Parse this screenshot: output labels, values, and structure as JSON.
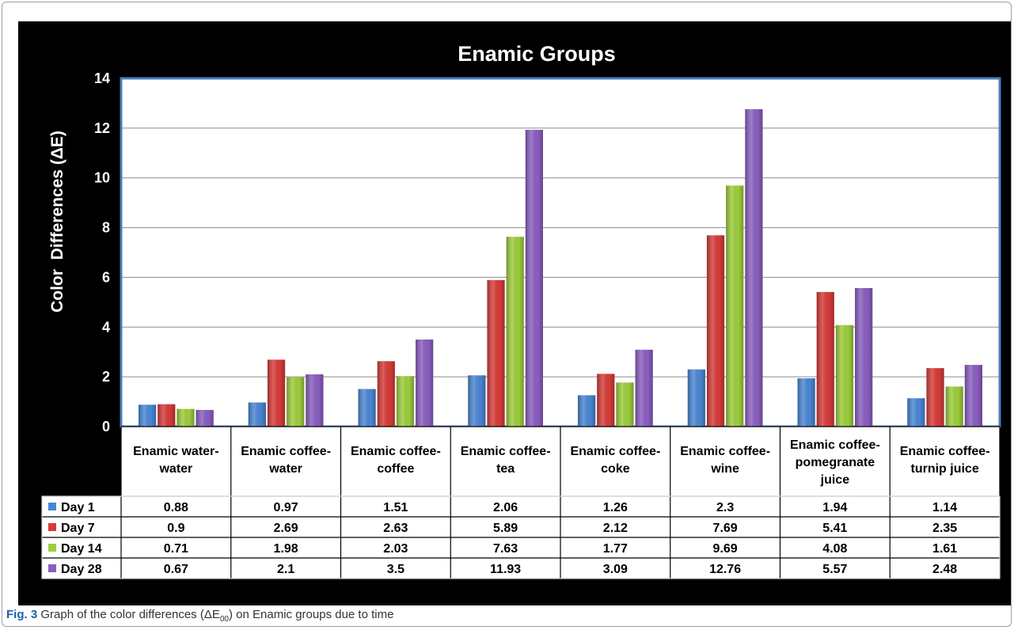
{
  "caption": {
    "label": "Fig. 3",
    "text_before": "Graph of the color differences (ΔE",
    "subscript": "00",
    "text_after": ") on Enamic groups due to time"
  },
  "colors": {
    "background": "#000000",
    "plot_area": "#ffffff",
    "plot_border": "#4a7ebb",
    "gridline": "#8c8c8c",
    "text": "#ffffff",
    "table_text": "#000000"
  },
  "chart_data": {
    "type": "bar",
    "title": "Enamic Groups",
    "xlabel": "",
    "ylabel": "Color  Differences (ΔE)",
    "ylim": [
      0,
      14
    ],
    "yticks": [
      "0",
      "2",
      "4",
      "6",
      "8",
      "10",
      "12",
      "14"
    ],
    "grid": true,
    "legend": "data-table",
    "categories": [
      [
        "Enamic water-",
        "water"
      ],
      [
        "Enamic coffee-",
        "water"
      ],
      [
        "Enamic coffee-",
        "coffee"
      ],
      [
        "Enamic coffee-",
        "tea"
      ],
      [
        "Enamic coffee-",
        "coke"
      ],
      [
        "Enamic coffee-",
        "wine"
      ],
      [
        "Enamic coffee-",
        "pomegranate",
        "juice"
      ],
      [
        "Enamic coffee-",
        "turnip juice"
      ]
    ],
    "series": [
      {
        "name": "Day 1",
        "color": "#4a86d4",
        "values": [
          0.88,
          0.97,
          1.51,
          2.06,
          1.26,
          2.3,
          1.94,
          1.14
        ],
        "labels": [
          "0.88",
          "0.97",
          "1.51",
          "2.06",
          "1.26",
          "2.3",
          "1.94",
          "1.14"
        ]
      },
      {
        "name": "Day 7",
        "color": "#d63b38",
        "values": [
          0.9,
          2.69,
          2.63,
          5.89,
          2.12,
          7.69,
          5.41,
          2.35
        ],
        "labels": [
          "0.9",
          "2.69",
          "2.63",
          "5.89",
          "2.12",
          "7.69",
          "5.41",
          "2.35"
        ]
      },
      {
        "name": "Day 14",
        "color": "#9ccd3c",
        "values": [
          0.71,
          1.98,
          2.03,
          7.63,
          1.77,
          9.69,
          4.08,
          1.61
        ],
        "labels": [
          "0.71",
          "1.98",
          "2.03",
          "7.63",
          "1.77",
          "9.69",
          "4.08",
          "1.61"
        ]
      },
      {
        "name": "Day 28",
        "color": "#8a5ec0",
        "values": [
          0.67,
          2.1,
          3.5,
          11.93,
          3.09,
          12.76,
          5.57,
          2.48
        ],
        "labels": [
          "0.67",
          "2.1",
          "3.5",
          "11.93",
          "3.09",
          "12.76",
          "5.57",
          "2.48"
        ]
      }
    ]
  }
}
